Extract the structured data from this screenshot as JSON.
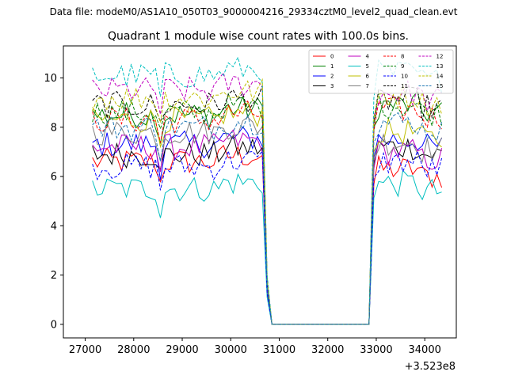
{
  "figure": {
    "suptitle": "Data file: modeM0/AS1A10_050T03_9000004216_29334cztM0_level2_quad_clean.evt"
  },
  "chart_data": {
    "type": "line",
    "title": "Quadrant 1 module wise count rates with 100.0s bins.",
    "xlabel": "",
    "ylabel": "",
    "x_offset_label": "+3.523e8",
    "xlim": [
      26550,
      34650
    ],
    "ylim": [
      -0.55,
      11.3
    ],
    "x_ticks": [
      27000,
      28000,
      29000,
      30000,
      31000,
      32000,
      33000,
      34000
    ],
    "x_tick_labels": [
      "27000",
      "28000",
      "29000",
      "30000",
      "31000",
      "32000",
      "33000",
      "34000"
    ],
    "y_ticks": [
      0,
      2,
      4,
      6,
      8,
      10
    ],
    "y_tick_labels": [
      "0",
      "2",
      "4",
      "6",
      "8",
      "10"
    ],
    "grid": false,
    "legend_position": "top-right",
    "legend_columns": 4,
    "bin_seconds": 100,
    "x_start": 27150,
    "x_end": 34350,
    "segment1_bins": [
      27150,
      30650
    ],
    "drop_bins": [
      30750,
      30850
    ],
    "gap_bins": [
      30850,
      32850
    ],
    "segment2_bins": [
      32950,
      34350
    ],
    "series": [
      {
        "name": "0",
        "color": "#ff0000",
        "dash": "solid",
        "level1": 6.6,
        "level2": 6.3
      },
      {
        "name": "1",
        "color": "#008000",
        "dash": "solid",
        "level1": 8.5,
        "level2": 8.9
      },
      {
        "name": "2",
        "color": "#0000ff",
        "dash": "solid",
        "level1": 7.3,
        "level2": 7.5
      },
      {
        "name": "3",
        "color": "#000000",
        "dash": "solid",
        "level1": 6.9,
        "level2": 7.2
      },
      {
        "name": "4",
        "color": "#bf00bf",
        "dash": "solid",
        "level1": 7.2,
        "level2": 7.0
      },
      {
        "name": "5",
        "color": "#00bfbf",
        "dash": "solid",
        "level1": 5.5,
        "level2": 5.7
      },
      {
        "name": "6",
        "color": "#bfbf00",
        "dash": "solid",
        "level1": 8.3,
        "level2": 7.8
      },
      {
        "name": "7",
        "color": "#808080",
        "dash": "solid",
        "level1": 7.8,
        "level2": 7.4
      },
      {
        "name": "8",
        "color": "#ff0000",
        "dash": "dashed",
        "level1": 8.3,
        "level2": 8.7
      },
      {
        "name": "9",
        "color": "#008000",
        "dash": "dashed",
        "level1": 8.6,
        "level2": 8.9
      },
      {
        "name": "10",
        "color": "#0000ff",
        "dash": "dashed",
        "level1": 6.4,
        "level2": 6.6
      },
      {
        "name": "11",
        "color": "#000000",
        "dash": "dashed",
        "level1": 8.9,
        "level2": 9.1
      },
      {
        "name": "12",
        "color": "#bf00bf",
        "dash": "dashed",
        "level1": 9.5,
        "level2": 9.4
      },
      {
        "name": "13",
        "color": "#00bfbf",
        "dash": "dashed",
        "level1": 10.1,
        "level2": 10.2
      },
      {
        "name": "14",
        "color": "#bfbf00",
        "dash": "dashed",
        "level1": 9.2,
        "level2": 9.3
      },
      {
        "name": "15",
        "color": "#1f77b4",
        "dash": "dashed",
        "level1": 8.0,
        "level2": 8.2
      }
    ]
  }
}
